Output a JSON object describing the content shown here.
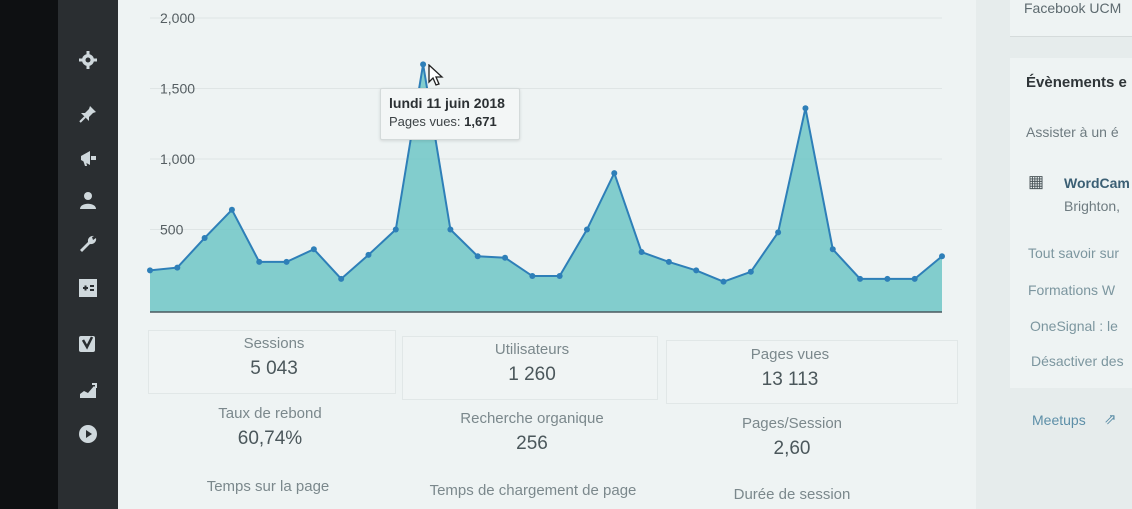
{
  "sidebar": {
    "icons": [
      "gear-icon",
      "pin-icon",
      "megaphone-icon",
      "user-icon",
      "wrench-icon",
      "plus-minus-icon",
      "yoast-icon",
      "analytics-icon",
      "play-icon"
    ]
  },
  "chart_data": {
    "type": "area",
    "y_ticks": [
      "2,000",
      "1,500",
      "1,000",
      "500"
    ],
    "ylim": [
      0,
      2000
    ],
    "values": [
      210,
      230,
      440,
      640,
      270,
      270,
      360,
      150,
      320,
      500,
      1671,
      500,
      310,
      300,
      170,
      170,
      500,
      900,
      340,
      270,
      210,
      130,
      200,
      480,
      1360,
      360,
      150,
      150,
      150,
      310
    ],
    "color": "#2e7fb8",
    "fill": "#6fc5c5"
  },
  "tooltip": {
    "date": "lundi 11 juin 2018",
    "label": "Pages vues: ",
    "value": "1,671"
  },
  "stats": [
    {
      "label": "Sessions",
      "value": "5 043"
    },
    {
      "label": "Utilisateurs",
      "value": "1 260"
    },
    {
      "label": "Pages vues",
      "value": "13 113"
    },
    {
      "label": "Taux de rebond",
      "value": "60,74%"
    },
    {
      "label": "Recherche organique",
      "value": "256"
    },
    {
      "label": "Pages/Session",
      "value": "2,60"
    },
    {
      "label": "Temps sur la page",
      "value": ""
    },
    {
      "label": "Temps de chargement de page",
      "value": ""
    },
    {
      "label": "Durée de session",
      "value": ""
    }
  ],
  "right_panel": {
    "facebook": "Facebook UCM",
    "events_title": "Évènements e",
    "attend": "Assister à un é",
    "wordcamp_title": "WordCam",
    "wordcamp_location": "Brighton,",
    "links": [
      "Tout savoir sur",
      "Formations W",
      "OneSignal : le",
      "Désactiver des"
    ],
    "meetups": "Meetups"
  }
}
